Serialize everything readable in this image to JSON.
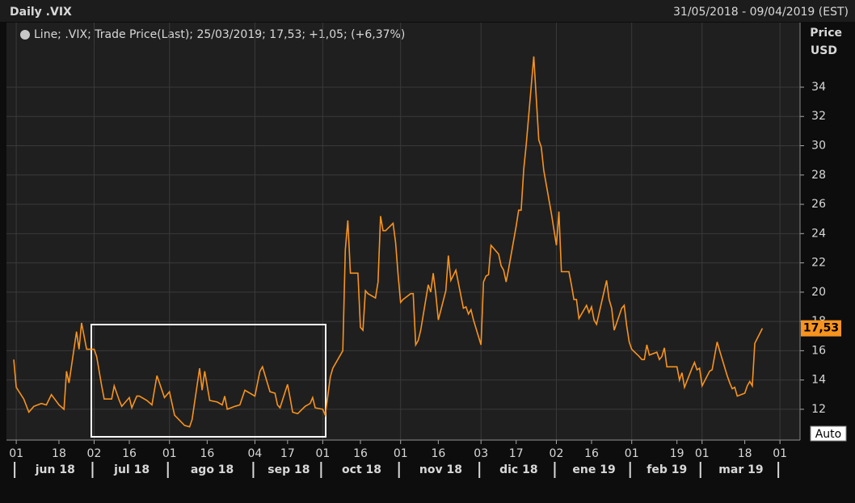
{
  "chart_data": {
    "type": "line",
    "title": "Daily .VIX",
    "date_range": "31/05/2018 - 09/04/2019 (EST)",
    "y_axis_label": [
      "Price",
      "USD"
    ],
    "change_label": "+1,05; (+6,37%)",
    "last_value": 17.53,
    "last_value_label": "17,53",
    "auto_button": "Auto",
    "x": [
      "2018-05-31",
      "2018-06-01",
      "2018-06-04",
      "2018-06-06",
      "2018-06-08",
      "2018-06-11",
      "2018-06-13",
      "2018-06-15",
      "2018-06-18",
      "2018-06-20",
      "2018-06-21",
      "2018-06-22",
      "2018-06-25",
      "2018-06-26",
      "2018-06-27",
      "2018-06-29",
      "2018-07-02",
      "2018-07-03",
      "2018-07-05",
      "2018-07-06",
      "2018-07-09",
      "2018-07-10",
      "2018-07-12",
      "2018-07-13",
      "2018-07-16",
      "2018-07-17",
      "2018-07-19",
      "2018-07-20",
      "2018-07-23",
      "2018-07-25",
      "2018-07-27",
      "2018-07-30",
      "2018-08-01",
      "2018-08-03",
      "2018-08-07",
      "2018-08-09",
      "2018-08-10",
      "2018-08-13",
      "2018-08-14",
      "2018-08-15",
      "2018-08-17",
      "2018-08-20",
      "2018-08-22",
      "2018-08-23",
      "2018-08-24",
      "2018-08-27",
      "2018-08-29",
      "2018-08-31",
      "2018-09-04",
      "2018-09-06",
      "2018-09-07",
      "2018-09-10",
      "2018-09-12",
      "2018-09-13",
      "2018-09-14",
      "2018-09-17",
      "2018-09-18",
      "2018-09-19",
      "2018-09-21",
      "2018-09-24",
      "2018-09-26",
      "2018-09-27",
      "2018-09-28",
      "2018-10-01",
      "2018-10-02",
      "2018-10-04",
      "2018-10-05",
      "2018-10-08",
      "2018-10-09",
      "2018-10-10",
      "2018-10-11",
      "2018-10-12",
      "2018-10-15",
      "2018-10-16",
      "2018-10-17",
      "2018-10-18",
      "2018-10-19",
      "2018-10-22",
      "2018-10-23",
      "2018-10-24",
      "2018-10-25",
      "2018-10-26",
      "2018-10-29",
      "2018-10-30",
      "2018-10-31",
      "2018-11-01",
      "2018-11-02",
      "2018-11-05",
      "2018-11-06",
      "2018-11-07",
      "2018-11-08",
      "2018-11-09",
      "2018-11-12",
      "2018-11-13",
      "2018-11-14",
      "2018-11-15",
      "2018-11-16",
      "2018-11-19",
      "2018-11-20",
      "2018-11-21",
      "2018-11-23",
      "2018-11-26",
      "2018-11-27",
      "2018-11-28",
      "2018-11-29",
      "2018-11-30",
      "2018-12-03",
      "2018-12-04",
      "2018-12-05",
      "2018-12-06",
      "2018-12-07",
      "2018-12-10",
      "2018-12-11",
      "2018-12-12",
      "2018-12-13",
      "2018-12-14",
      "2018-12-17",
      "2018-12-18",
      "2018-12-19",
      "2018-12-20",
      "2018-12-21",
      "2018-12-24",
      "2018-12-26",
      "2018-12-27",
      "2018-12-28",
      "2018-12-31",
      "2019-01-02",
      "2019-01-03",
      "2019-01-04",
      "2019-01-07",
      "2019-01-08",
      "2019-01-09",
      "2019-01-10",
      "2019-01-11",
      "2019-01-14",
      "2019-01-15",
      "2019-01-16",
      "2019-01-17",
      "2019-01-18",
      "2019-01-22",
      "2019-01-23",
      "2019-01-24",
      "2019-01-25",
      "2019-01-28",
      "2019-01-29",
      "2019-01-30",
      "2019-01-31",
      "2019-02-01",
      "2019-02-04",
      "2019-02-05",
      "2019-02-06",
      "2019-02-07",
      "2019-02-08",
      "2019-02-11",
      "2019-02-12",
      "2019-02-13",
      "2019-02-14",
      "2019-02-15",
      "2019-02-19",
      "2019-02-20",
      "2019-02-21",
      "2019-02-22",
      "2019-02-25",
      "2019-02-26",
      "2019-02-27",
      "2019-02-28",
      "2019-03-01",
      "2019-03-04",
      "2019-03-05",
      "2019-03-07",
      "2019-03-08",
      "2019-03-11",
      "2019-03-12",
      "2019-03-13",
      "2019-03-14",
      "2019-03-15",
      "2019-03-18",
      "2019-03-19",
      "2019-03-20",
      "2019-03-21",
      "2019-03-22",
      "2019-03-25"
    ],
    "series": [
      {
        "name": "Line; .VIX; Trade Price(Last); 25/03/2019; 17,53;",
        "color": "#f7931e",
        "values": [
          15.4,
          13.5,
          12.7,
          11.8,
          12.2,
          12.4,
          12.3,
          13.0,
          12.3,
          12.0,
          14.6,
          13.8,
          17.3,
          16.1,
          17.9,
          16.1,
          16.1,
          15.6,
          13.6,
          12.7,
          12.7,
          13.6,
          12.6,
          12.2,
          12.8,
          12.1,
          12.9,
          12.9,
          12.6,
          12.3,
          14.3,
          12.8,
          13.2,
          11.6,
          10.9,
          10.8,
          11.3,
          14.8,
          13.3,
          14.6,
          12.6,
          12.5,
          12.3,
          12.9,
          12.0,
          12.2,
          12.3,
          13.3,
          12.9,
          14.6,
          14.9,
          13.2,
          13.1,
          12.3,
          12.1,
          13.7,
          12.8,
          11.8,
          11.7,
          12.2,
          12.4,
          12.8,
          12.1,
          12.0,
          11.6,
          14.2,
          14.8,
          15.7,
          16.0,
          22.9,
          24.9,
          21.3,
          21.3,
          17.6,
          17.4,
          20.1,
          19.9,
          19.6,
          20.7,
          25.2,
          24.2,
          24.2,
          24.7,
          23.4,
          21.2,
          19.3,
          19.5,
          19.9,
          19.9,
          16.4,
          16.7,
          17.4,
          20.5,
          20.0,
          21.3,
          19.9,
          18.1,
          20.1,
          22.5,
          20.8,
          21.5,
          18.9,
          19.0,
          18.5,
          18.8,
          18.1,
          16.4,
          20.7,
          21.1,
          21.2,
          23.2,
          22.6,
          21.8,
          21.5,
          20.7,
          21.6,
          24.5,
          25.6,
          25.6,
          28.4,
          30.1,
          36.1,
          30.4,
          29.9,
          28.3,
          25.4,
          23.2,
          25.5,
          21.4,
          21.4,
          20.5,
          19.5,
          19.5,
          18.2,
          19.1,
          18.6,
          19.0,
          18.1,
          17.8,
          20.8,
          19.5,
          18.9,
          17.4,
          18.9,
          19.1,
          17.7,
          16.6,
          16.1,
          15.6,
          15.4,
          15.4,
          16.4,
          15.7,
          15.9,
          15.4,
          15.6,
          16.2,
          14.9,
          14.9,
          14.0,
          14.5,
          13.5,
          14.8,
          15.2,
          14.7,
          14.8,
          13.6,
          14.6,
          14.7,
          16.6,
          16.0,
          14.3,
          13.8,
          13.4,
          13.5,
          12.9,
          13.1,
          13.6,
          13.9,
          13.6,
          16.5,
          17.53
        ]
      }
    ],
    "xlim": [
      "2018-05-31",
      "2019-04-09"
    ],
    "xticks": [
      {
        "value": "2018-06-01",
        "label": "01"
      },
      {
        "value": "2018-06-18",
        "label": "18"
      },
      {
        "value": "2018-07-02",
        "label": "02"
      },
      {
        "value": "2018-07-16",
        "label": "16"
      },
      {
        "value": "2018-08-01",
        "label": "01"
      },
      {
        "value": "2018-08-16",
        "label": "16"
      },
      {
        "value": "2018-09-04",
        "label": "04"
      },
      {
        "value": "2018-09-17",
        "label": "17"
      },
      {
        "value": "2018-10-01",
        "label": "01"
      },
      {
        "value": "2018-10-16",
        "label": "16"
      },
      {
        "value": "2018-11-01",
        "label": "01"
      },
      {
        "value": "2018-11-16",
        "label": "16"
      },
      {
        "value": "2018-12-03",
        "label": "03"
      },
      {
        "value": "2018-12-17",
        "label": "17"
      },
      {
        "value": "2019-01-02",
        "label": "02"
      },
      {
        "value": "2019-01-16",
        "label": "16"
      },
      {
        "value": "2019-02-01",
        "label": "01"
      },
      {
        "value": "2019-02-19",
        "label": "19"
      },
      {
        "value": "2019-03-01",
        "label": "01"
      },
      {
        "value": "2019-03-18",
        "label": "18"
      },
      {
        "value": "2019-04-01",
        "label": "01"
      }
    ],
    "months": [
      "jun 18",
      "jul 18",
      "ago 18",
      "sep 18",
      "oct 18",
      "nov 18",
      "dic 18",
      "ene 19",
      "feb 19",
      "mar 19"
    ],
    "ylim": [
      9.9,
      38.3
    ],
    "yticks": [
      12,
      14,
      16,
      18,
      20,
      22,
      24,
      26,
      28,
      30,
      32,
      34
    ],
    "grid": true
  }
}
